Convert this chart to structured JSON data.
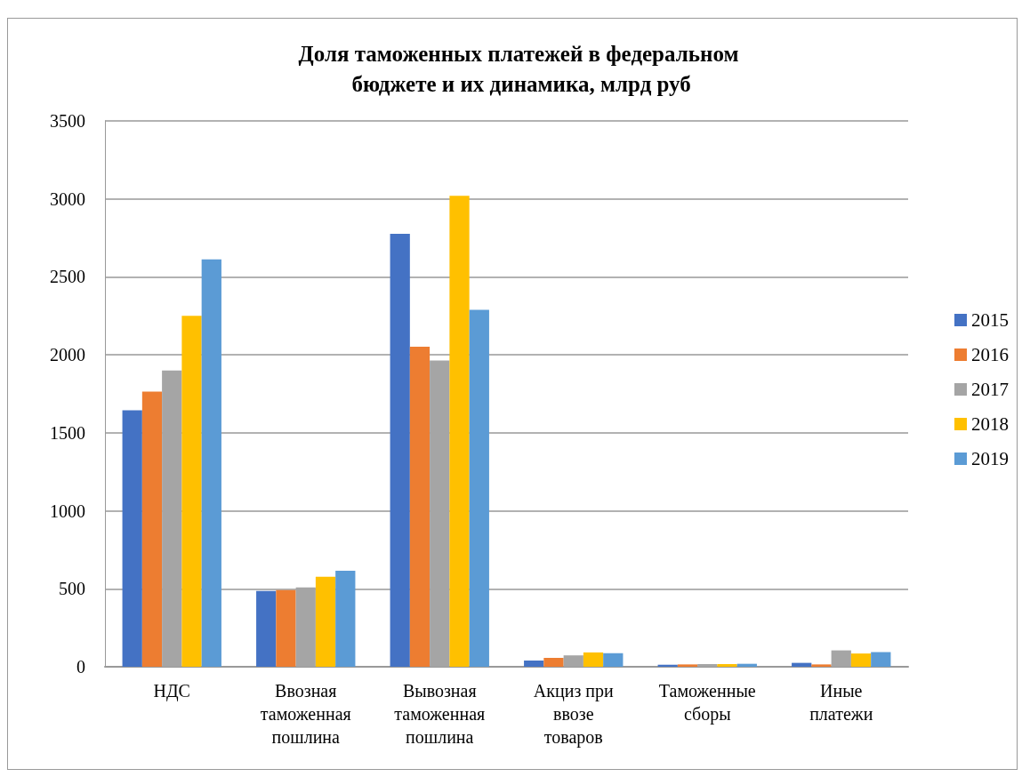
{
  "chart_data": {
    "type": "bar",
    "title": "Доля таможенных платежей в федеральном бюджете и их динамика, млрд руб",
    "categories": [
      "НДС",
      "Ввозная таможенная пошлина",
      "Вывозная таможенная пошлина",
      "Акциз при ввозе товаров",
      "Таможенные сборы",
      "Иные платежи"
    ],
    "series": [
      {
        "name": "2015",
        "color": "#4472c4",
        "values": [
          1645,
          486,
          2776,
          40,
          13,
          25
        ]
      },
      {
        "name": "2016",
        "color": "#ed7d31",
        "values": [
          1764,
          492,
          2052,
          57,
          15,
          15
        ]
      },
      {
        "name": "2017",
        "color": "#a5a5a5",
        "values": [
          1900,
          509,
          1964,
          73,
          17,
          105
        ]
      },
      {
        "name": "2018",
        "color": "#ffc000",
        "values": [
          2250,
          577,
          3020,
          92,
          17,
          85
        ]
      },
      {
        "name": "2019",
        "color": "#5b9bd5",
        "values": [
          2612,
          616,
          2289,
          87,
          19,
          94
        ]
      }
    ],
    "ylim": [
      0,
      3500
    ],
    "yticks": [
      0,
      500,
      1000,
      1500,
      2000,
      2500,
      3000,
      3500
    ],
    "grid": "y",
    "legend": "right"
  }
}
